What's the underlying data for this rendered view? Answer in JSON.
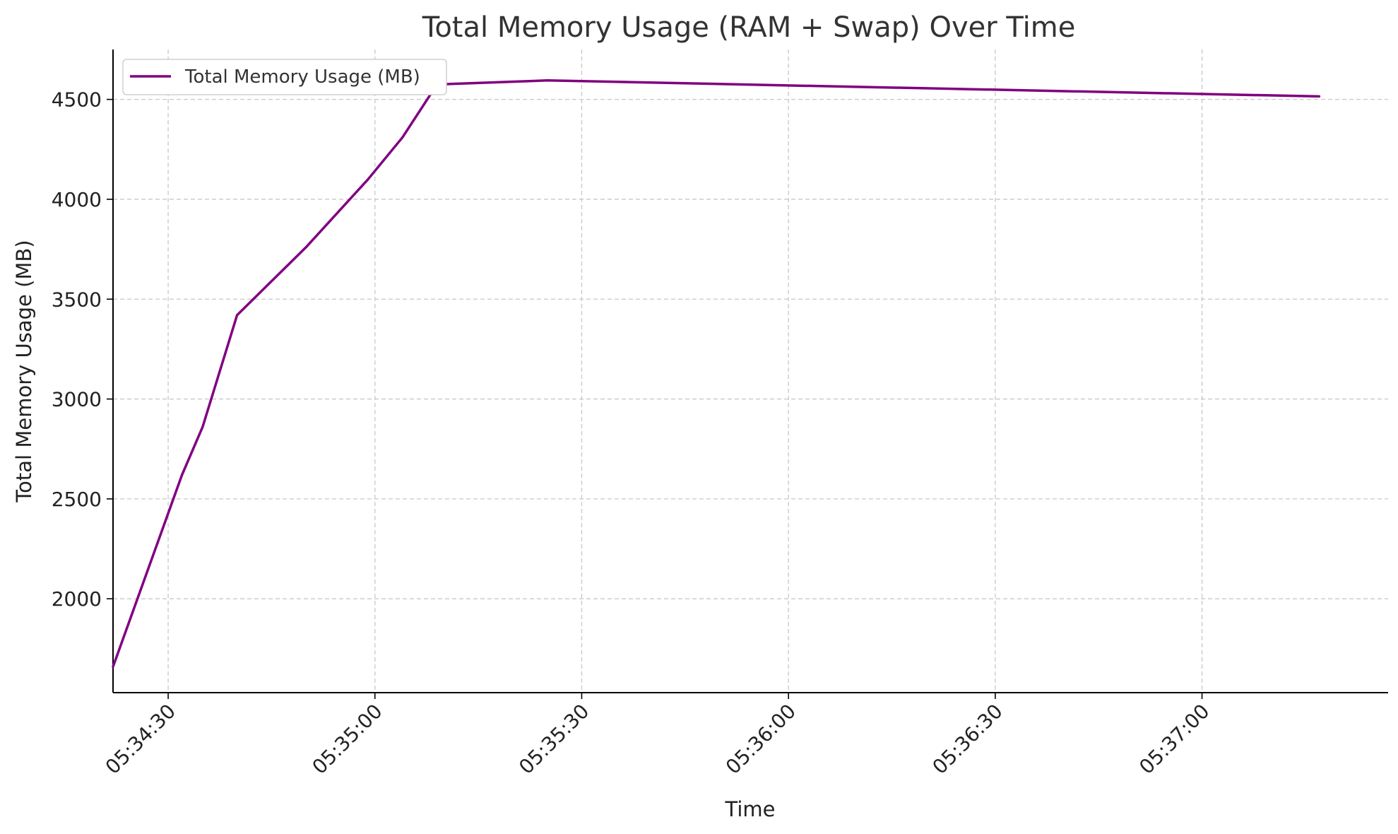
{
  "chart_data": {
    "type": "line",
    "title": "Total Memory Usage (RAM + Swap) Over Time",
    "xlabel": "Time",
    "ylabel": "Total Memory Usage (MB)",
    "x_axis_type": "time",
    "xlim": [
      "05:34:22",
      "05:37:27"
    ],
    "ylim": [
      1530,
      4750
    ],
    "grid": true,
    "legend_position": "top-left",
    "x_ticks": [
      "05:34:30",
      "05:35:00",
      "05:35:30",
      "05:36:00",
      "05:36:30",
      "05:37:00"
    ],
    "y_ticks": [
      2000,
      2500,
      3000,
      3500,
      4000,
      4500
    ],
    "colors": {
      "line": "#800080",
      "grid": "#c8c8c8",
      "axis": "#000000"
    },
    "series": [
      {
        "name": "Total Memory Usage (MB)",
        "x": [
          "05:34:22",
          "05:34:32",
          "05:34:35",
          "05:34:40",
          "05:34:50",
          "05:34:59",
          "05:35:04",
          "05:35:09",
          "05:35:25",
          "05:37:17"
        ],
        "values": [
          1660,
          2620,
          2860,
          3420,
          3760,
          4100,
          4310,
          4575,
          4595,
          4515
        ]
      }
    ]
  }
}
